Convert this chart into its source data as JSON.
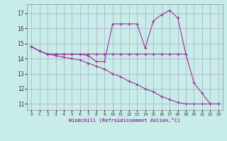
{
  "xlabel": "Windchill (Refroidissement éolien,°C)",
  "xlim": [
    -0.5,
    23.5
  ],
  "ylim": [
    10.6,
    17.6
  ],
  "yticks": [
    11,
    12,
    13,
    14,
    15,
    16,
    17
  ],
  "xticks": [
    0,
    1,
    2,
    3,
    4,
    5,
    6,
    7,
    8,
    9,
    10,
    11,
    12,
    13,
    14,
    15,
    16,
    17,
    18,
    19,
    20,
    21,
    22,
    23
  ],
  "bg_color": "#c8ece8",
  "grid_color": "#aaaacc",
  "line_color": "#993399",
  "line1_x": [
    0,
    1,
    2,
    3,
    4,
    5,
    6,
    7,
    8,
    9,
    10,
    11,
    12,
    13,
    14,
    15,
    16,
    17,
    18,
    19,
    20,
    21,
    22,
    23
  ],
  "line1_y": [
    14.8,
    14.5,
    14.3,
    14.3,
    14.3,
    14.3,
    14.3,
    14.2,
    13.8,
    13.8,
    16.3,
    16.3,
    16.3,
    16.3,
    14.7,
    16.5,
    16.9,
    17.2,
    16.7,
    14.3,
    12.4,
    11.7,
    11.0,
    11.0
  ],
  "line2_x": [
    0,
    1,
    2,
    3,
    4,
    5,
    6,
    7,
    8,
    9,
    10,
    11,
    12,
    13,
    14,
    15,
    16,
    17,
    18,
    19
  ],
  "line2_y": [
    14.8,
    14.5,
    14.3,
    14.3,
    14.3,
    14.3,
    14.3,
    14.3,
    14.3,
    14.3,
    14.3,
    14.3,
    14.3,
    14.3,
    14.3,
    14.3,
    14.3,
    14.3,
    14.3,
    14.3
  ],
  "line3_x": [
    0,
    1,
    2,
    3,
    4,
    5,
    6,
    7,
    8,
    9,
    10,
    11,
    12,
    13,
    14,
    15,
    16,
    17,
    18,
    19,
    20,
    21,
    22,
    23
  ],
  "line3_y": [
    14.8,
    14.5,
    14.3,
    14.2,
    14.1,
    14.0,
    13.9,
    13.7,
    13.5,
    13.3,
    13.0,
    12.8,
    12.5,
    12.3,
    12.0,
    11.8,
    11.5,
    11.3,
    11.1,
    11.0,
    11.0,
    11.0,
    11.0,
    11.0
  ]
}
